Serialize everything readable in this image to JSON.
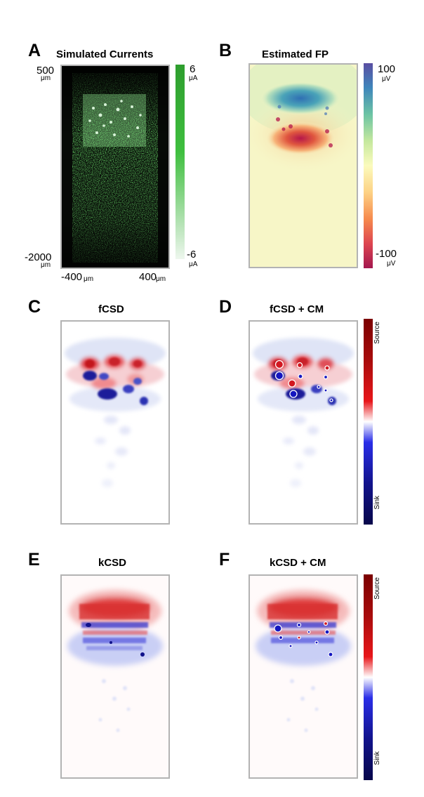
{
  "panels": {
    "a": {
      "letter": "A",
      "title": "Simulated Currents",
      "y_top": "500",
      "y_top_unit": "μm",
      "y_bottom": "-2000",
      "y_bottom_unit": "μm",
      "x_left": "-400",
      "x_left_unit": "μm",
      "x_right": "400",
      "x_right_unit": "μm",
      "cbar_max": "6",
      "cbar_max_unit": "μA",
      "cbar_min": "-6",
      "cbar_min_unit": "μA",
      "cbar_colors": {
        "top": "#2e9e2e",
        "bottom": "#eef7ee"
      }
    },
    "b": {
      "letter": "B",
      "title": "Estimated FP",
      "cbar_max": "100",
      "cbar_max_unit": "μV",
      "cbar_min": "-100",
      "cbar_min_unit": "μV"
    },
    "c": {
      "letter": "C",
      "title": "fCSD"
    },
    "d": {
      "letter": "D",
      "title": "fCSD + CM",
      "cbar_source": "Source",
      "cbar_sink": "Sink"
    },
    "e": {
      "letter": "E",
      "title": "kCSD"
    },
    "f": {
      "letter": "F",
      "title": "kCSD + CM",
      "cbar_source": "Source",
      "cbar_sink": "Sink"
    }
  },
  "colors": {
    "source": "#c0101a",
    "sink": "#1016b0",
    "frame": "#b3b3b3"
  }
}
